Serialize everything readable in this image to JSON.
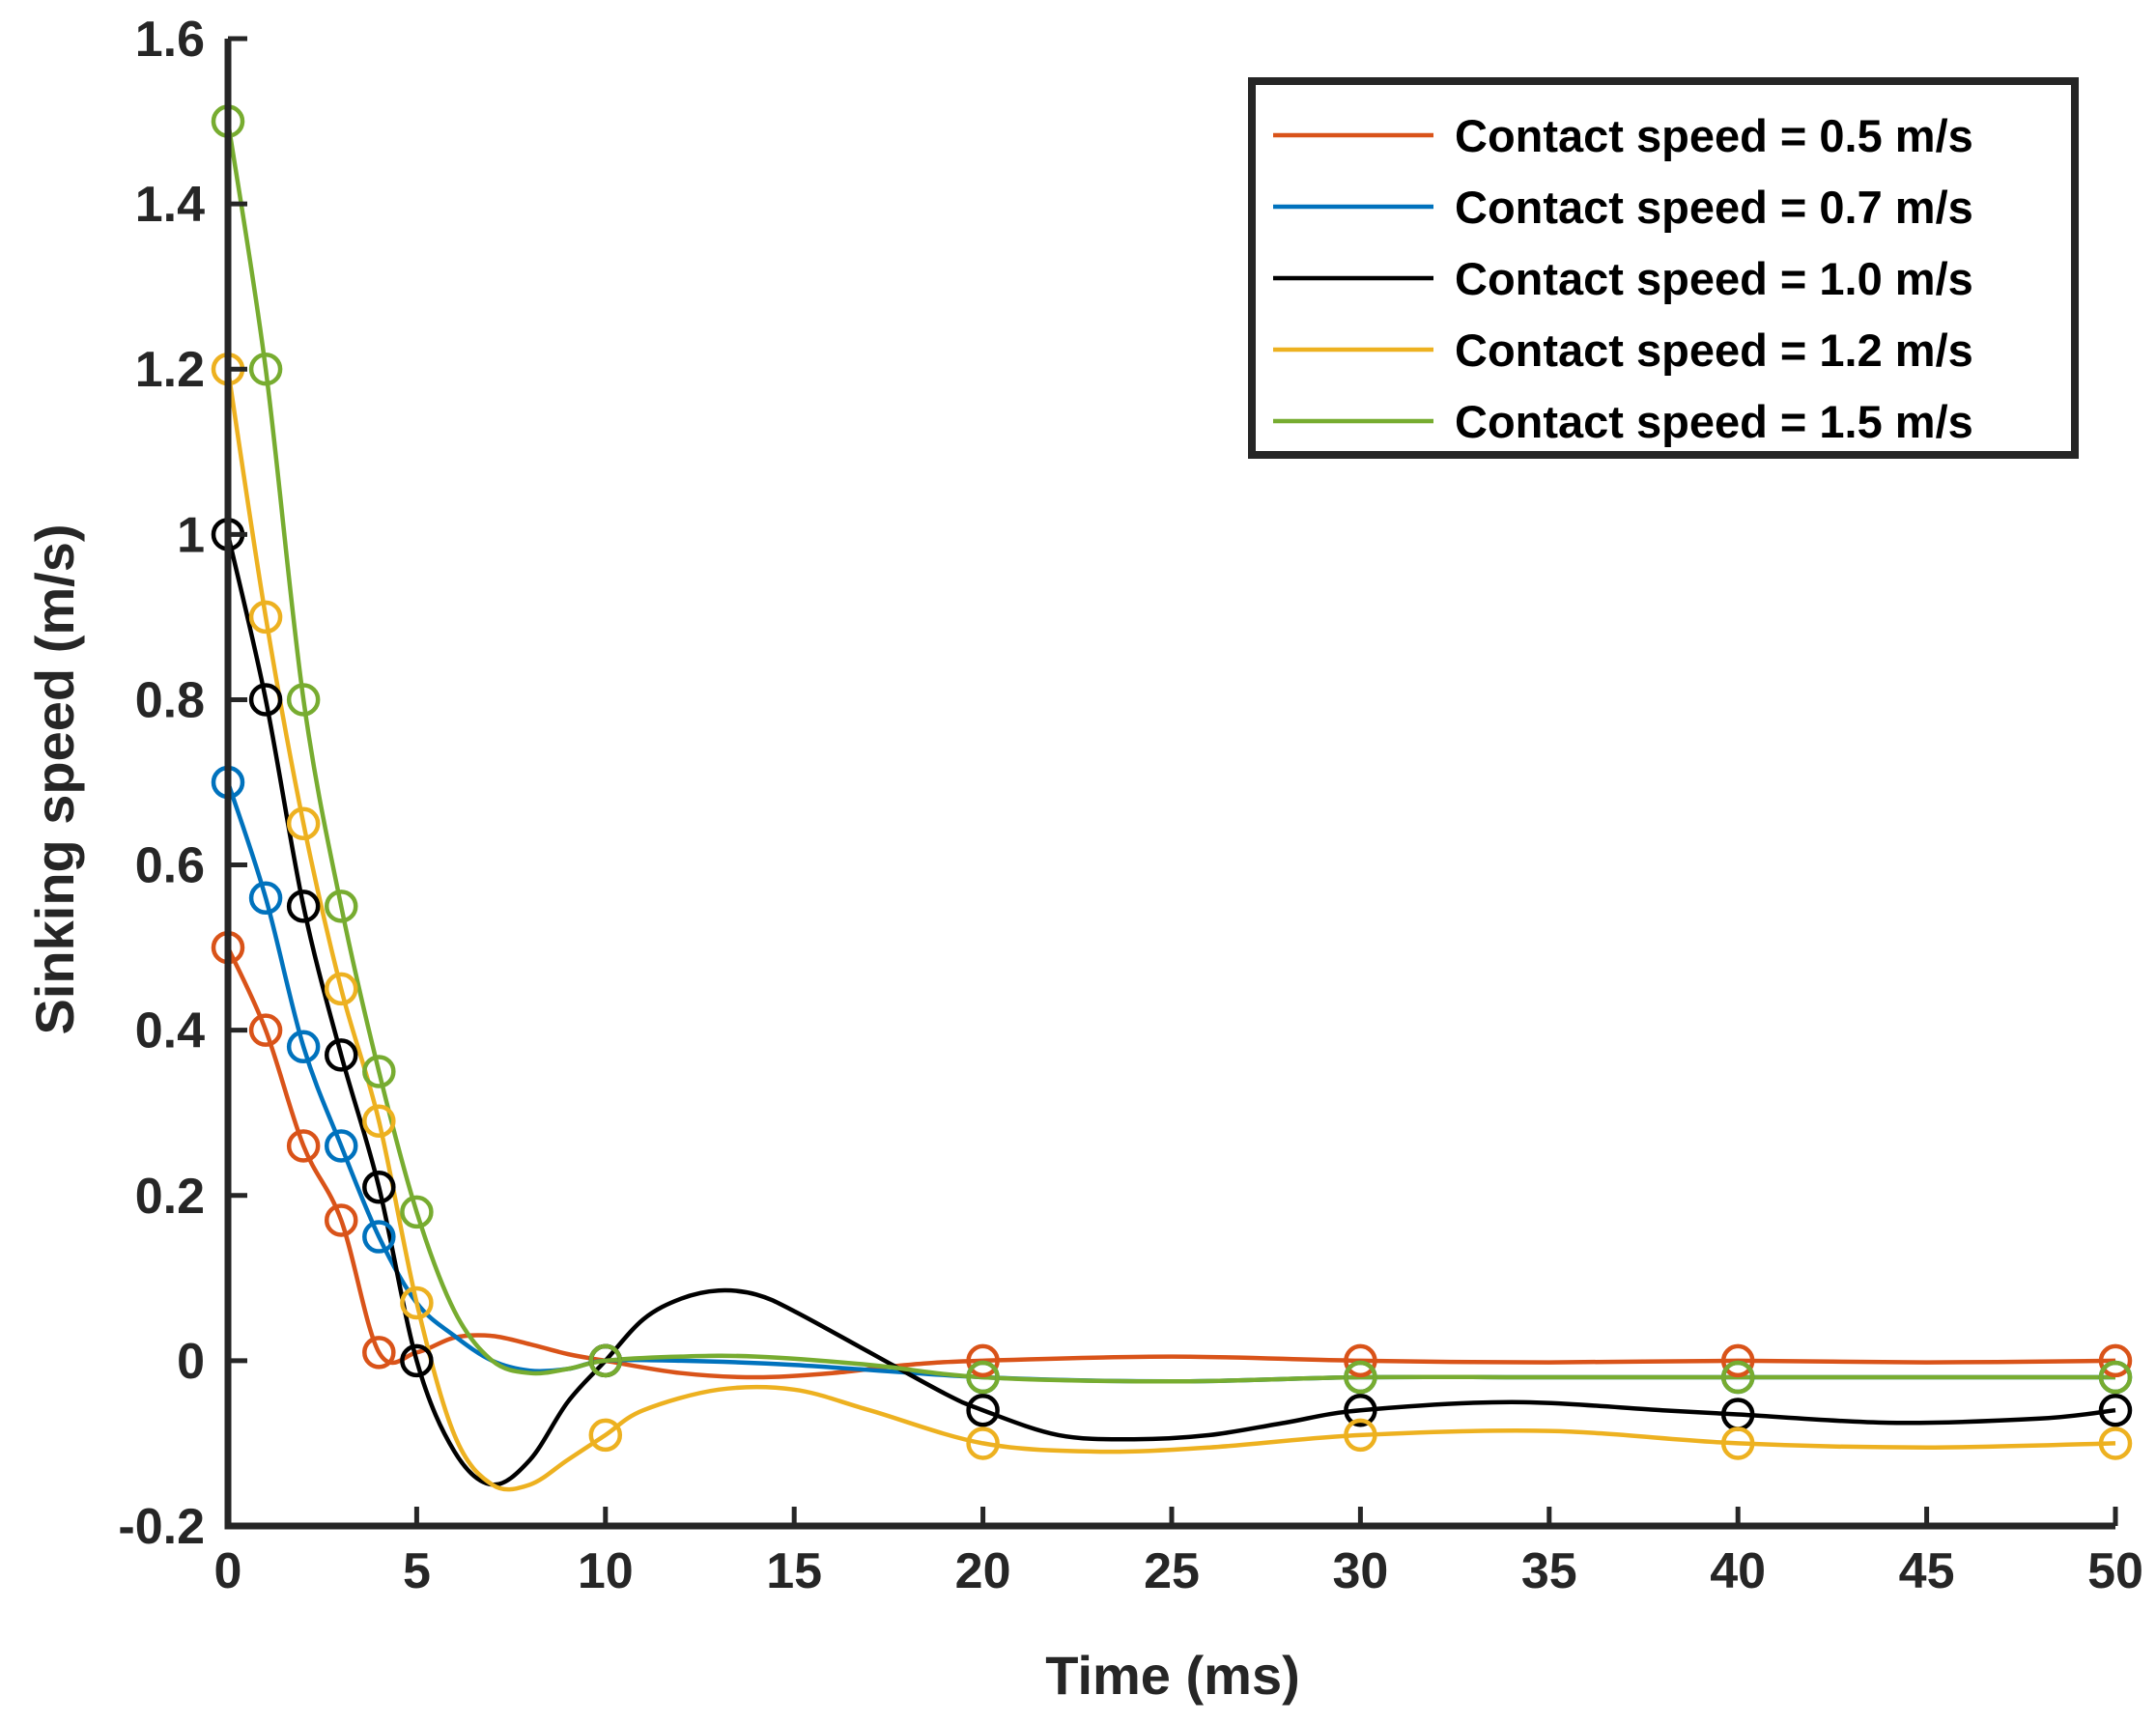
{
  "chart_data": {
    "type": "line",
    "title": "",
    "xlabel": "Time (ms)",
    "ylabel": "Sinking speed (m/s)",
    "xlim": [
      0,
      50
    ],
    "ylim": [
      -0.2,
      1.6
    ],
    "xticks": [
      0,
      5,
      10,
      15,
      20,
      25,
      30,
      35,
      40,
      45,
      50
    ],
    "xtick_labels": [
      "0",
      "5",
      "10",
      "15",
      "20",
      "25",
      "30",
      "35",
      "40",
      "45",
      "50"
    ],
    "yticks": [
      -0.2,
      0,
      0.2,
      0.4,
      0.6,
      0.8,
      1,
      1.2,
      1.4,
      1.6
    ],
    "ytick_labels": [
      "-0.2",
      "0",
      "0.2",
      "0.4",
      "0.6",
      "0.8",
      "1",
      "1.2",
      "1.4",
      "1.6"
    ],
    "grid": false,
    "legend_position": "top-right",
    "series": [
      {
        "name": "Contact speed = 0.5 m/s",
        "color": "#D95319",
        "markers": [
          [
            0,
            0.5
          ],
          [
            1,
            0.4
          ],
          [
            2,
            0.26
          ],
          [
            3,
            0.17
          ],
          [
            4,
            0.01
          ],
          [
            10,
            0.0
          ],
          [
            20,
            0.0
          ],
          [
            30,
            0.0
          ],
          [
            40,
            0.0
          ],
          [
            50,
            0.0
          ]
        ],
        "curve": [
          [
            0,
            0.5
          ],
          [
            1,
            0.4
          ],
          [
            2,
            0.26
          ],
          [
            3,
            0.17
          ],
          [
            4,
            0.01
          ],
          [
            5,
            0.01
          ],
          [
            6,
            0.028
          ],
          [
            7,
            0.03
          ],
          [
            8,
            0.02
          ],
          [
            9,
            0.008
          ],
          [
            10,
            0.0
          ],
          [
            12,
            -0.015
          ],
          [
            14,
            -0.02
          ],
          [
            16,
            -0.015
          ],
          [
            18,
            -0.005
          ],
          [
            20,
            0.0
          ],
          [
            25,
            0.005
          ],
          [
            30,
            0.0
          ],
          [
            35,
            -0.002
          ],
          [
            40,
            0.0
          ],
          [
            45,
            -0.002
          ],
          [
            50,
            0.0
          ]
        ]
      },
      {
        "name": "Contact speed = 0.7 m/s",
        "color": "#0072BD",
        "markers": [
          [
            0,
            0.7
          ],
          [
            1,
            0.56
          ],
          [
            2,
            0.38
          ],
          [
            3,
            0.26
          ],
          [
            4,
            0.15
          ],
          [
            10,
            0.0
          ],
          [
            20,
            -0.02
          ],
          [
            30,
            -0.02
          ],
          [
            40,
            -0.02
          ],
          [
            50,
            -0.02
          ]
        ],
        "curve": [
          [
            0,
            0.7
          ],
          [
            1,
            0.56
          ],
          [
            2,
            0.38
          ],
          [
            3,
            0.26
          ],
          [
            4,
            0.15
          ],
          [
            5,
            0.07
          ],
          [
            6,
            0.03
          ],
          [
            7,
            0.0
          ],
          [
            8,
            -0.012
          ],
          [
            9,
            -0.01
          ],
          [
            10,
            0.0
          ],
          [
            12,
            0.0
          ],
          [
            15,
            -0.005
          ],
          [
            20,
            -0.02
          ],
          [
            25,
            -0.025
          ],
          [
            30,
            -0.02
          ],
          [
            35,
            -0.02
          ],
          [
            40,
            -0.02
          ],
          [
            45,
            -0.02
          ],
          [
            50,
            -0.02
          ]
        ]
      },
      {
        "name": "Contact speed = 1.0 m/s",
        "color": "#000000",
        "markers": [
          [
            0,
            1.0
          ],
          [
            1,
            0.8
          ],
          [
            2,
            0.55
          ],
          [
            3,
            0.37
          ],
          [
            4,
            0.21
          ],
          [
            5,
            0.0
          ],
          [
            10,
            0.0
          ],
          [
            20,
            -0.06
          ],
          [
            30,
            -0.06
          ],
          [
            40,
            -0.065
          ],
          [
            50,
            -0.06
          ]
        ],
        "curve": [
          [
            0,
            1.0
          ],
          [
            1,
            0.8
          ],
          [
            2,
            0.55
          ],
          [
            3,
            0.37
          ],
          [
            4,
            0.21
          ],
          [
            5,
            0.0
          ],
          [
            6,
            -0.11
          ],
          [
            7,
            -0.15
          ],
          [
            8,
            -0.12
          ],
          [
            9,
            -0.05
          ],
          [
            10,
            0.0
          ],
          [
            11,
            0.05
          ],
          [
            12,
            0.075
          ],
          [
            13,
            0.085
          ],
          [
            14,
            0.08
          ],
          [
            15,
            0.06
          ],
          [
            17,
            0.01
          ],
          [
            19,
            -0.04
          ],
          [
            20,
            -0.06
          ],
          [
            22,
            -0.09
          ],
          [
            24,
            -0.095
          ],
          [
            26,
            -0.09
          ],
          [
            28,
            -0.075
          ],
          [
            30,
            -0.06
          ],
          [
            34,
            -0.05
          ],
          [
            38,
            -0.06
          ],
          [
            40,
            -0.065
          ],
          [
            44,
            -0.075
          ],
          [
            48,
            -0.07
          ],
          [
            50,
            -0.06
          ]
        ]
      },
      {
        "name": "Contact speed = 1.2 m/s",
        "color": "#EDB120",
        "markers": [
          [
            0,
            1.2
          ],
          [
            1,
            0.9
          ],
          [
            2,
            0.65
          ],
          [
            3,
            0.45
          ],
          [
            4,
            0.29
          ],
          [
            5,
            0.07
          ],
          [
            10,
            -0.09
          ],
          [
            20,
            -0.1
          ],
          [
            30,
            -0.09
          ],
          [
            40,
            -0.1
          ],
          [
            50,
            -0.1
          ]
        ],
        "curve": [
          [
            0,
            1.2
          ],
          [
            1,
            0.9
          ],
          [
            2,
            0.65
          ],
          [
            3,
            0.45
          ],
          [
            4,
            0.29
          ],
          [
            5,
            0.07
          ],
          [
            6,
            -0.09
          ],
          [
            7,
            -0.15
          ],
          [
            8,
            -0.15
          ],
          [
            9,
            -0.12
          ],
          [
            10,
            -0.09
          ],
          [
            11,
            -0.06
          ],
          [
            13,
            -0.035
          ],
          [
            15,
            -0.035
          ],
          [
            17,
            -0.06
          ],
          [
            20,
            -0.1
          ],
          [
            23,
            -0.11
          ],
          [
            26,
            -0.105
          ],
          [
            30,
            -0.09
          ],
          [
            35,
            -0.085
          ],
          [
            40,
            -0.1
          ],
          [
            45,
            -0.105
          ],
          [
            50,
            -0.1
          ]
        ]
      },
      {
        "name": "Contact speed = 1.5 m/s",
        "color": "#77AC30",
        "markers": [
          [
            0,
            1.5
          ],
          [
            1,
            1.2
          ],
          [
            2,
            0.8
          ],
          [
            3,
            0.55
          ],
          [
            4,
            0.35
          ],
          [
            5,
            0.18
          ],
          [
            10,
            0.0
          ],
          [
            20,
            -0.02
          ],
          [
            30,
            -0.02
          ],
          [
            40,
            -0.02
          ],
          [
            50,
            -0.02
          ]
        ],
        "curve": [
          [
            0,
            1.5
          ],
          [
            1,
            1.2
          ],
          [
            2,
            0.8
          ],
          [
            3,
            0.55
          ],
          [
            4,
            0.35
          ],
          [
            5,
            0.18
          ],
          [
            6,
            0.06
          ],
          [
            7,
            0.0
          ],
          [
            8,
            -0.015
          ],
          [
            9,
            -0.01
          ],
          [
            10,
            0.0
          ],
          [
            12,
            0.005
          ],
          [
            14,
            0.005
          ],
          [
            17,
            -0.005
          ],
          [
            20,
            -0.02
          ],
          [
            25,
            -0.025
          ],
          [
            30,
            -0.02
          ],
          [
            35,
            -0.02
          ],
          [
            40,
            -0.02
          ],
          [
            45,
            -0.02
          ],
          [
            50,
            -0.02
          ]
        ]
      }
    ]
  }
}
